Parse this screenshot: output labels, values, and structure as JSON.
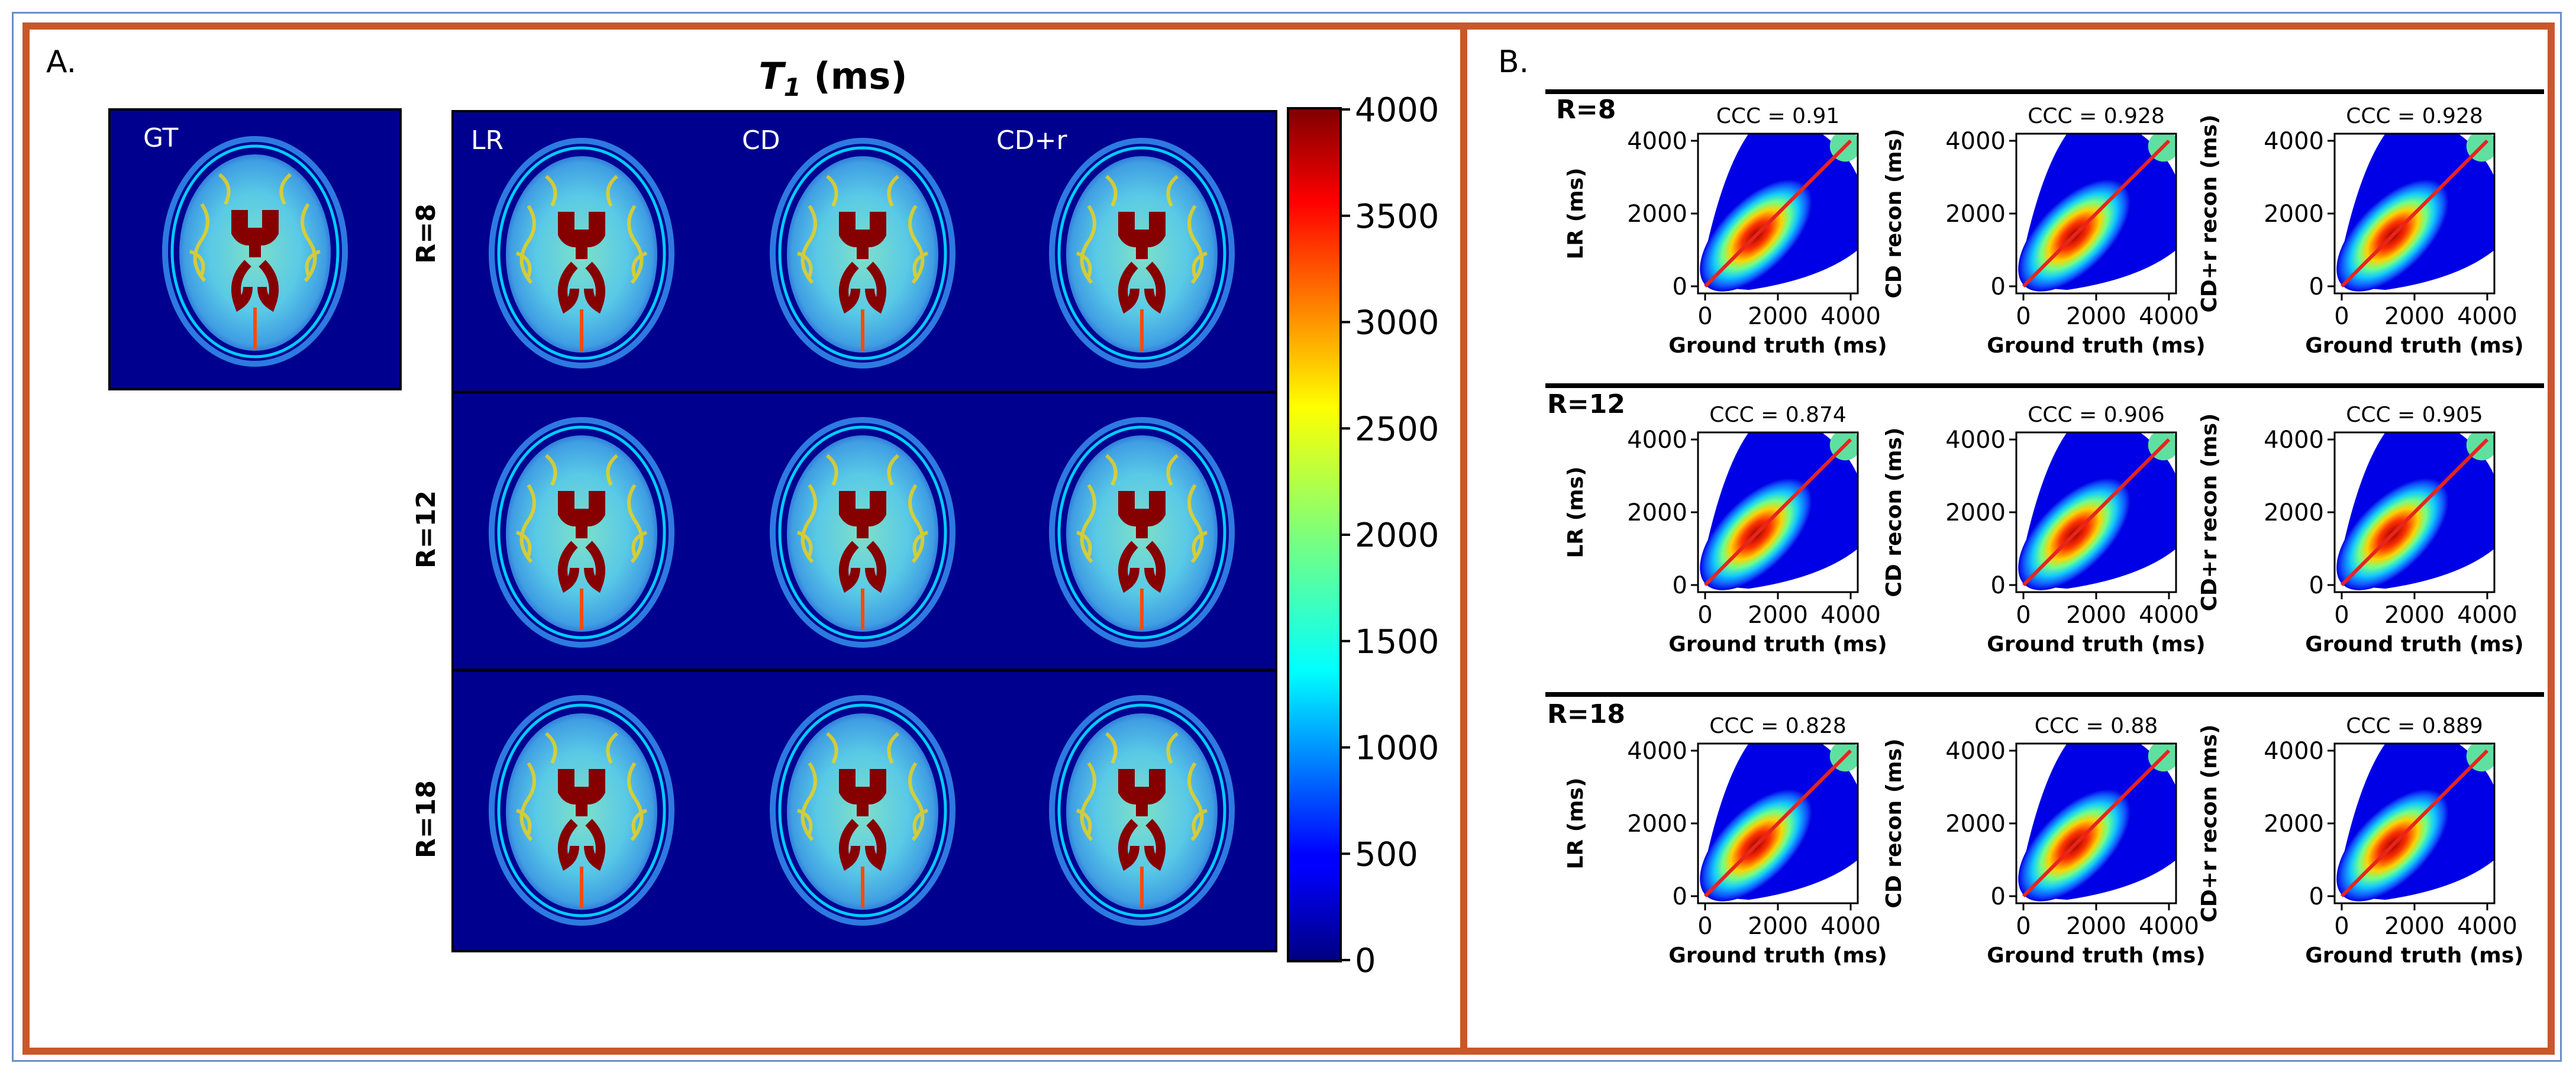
{
  "panel_a": {
    "label": "A.",
    "title_symbol": "T",
    "title_subscript": "1",
    "title_unit": " (ms)",
    "gt_label": "GT",
    "column_labels": [
      "LR",
      "CD",
      "CD+r"
    ],
    "row_labels": [
      "R=8",
      "R=12",
      "R=18"
    ],
    "colorbar_ticks": [
      "4000",
      "3500",
      "3000",
      "2500",
      "2000",
      "1500",
      "1000",
      "500",
      "0"
    ],
    "colors": {
      "background": "#00008f",
      "ventricle": "#800000"
    }
  },
  "panel_b": {
    "label": "B.",
    "rows": [
      {
        "label": "R=8",
        "ccc": [
          "CCC = 0.91",
          "CCC = 0.928",
          "CCC = 0.928"
        ]
      },
      {
        "label": "R=12",
        "ccc": [
          "CCC = 0.874",
          "CCC = 0.906",
          "CCC = 0.905"
        ]
      },
      {
        "label": "R=18",
        "ccc": [
          "CCC = 0.828",
          "CCC = 0.88",
          "CCC = 0.889"
        ]
      }
    ],
    "ylabels": [
      "LR (ms)",
      "CD recon (ms)",
      "CD+r recon (ms)"
    ],
    "xlabel": "Ground truth (ms)",
    "tick_labels": [
      "0",
      "2000",
      "4000"
    ]
  },
  "chart_data": [
    {
      "type": "scatter",
      "title": "CCC = 0.91",
      "xlabel": "Ground truth (ms)",
      "ylabel": "LR (ms)",
      "xlim": [
        0,
        4000
      ],
      "ylim": [
        0,
        4000
      ],
      "x": [
        0,
        4000
      ],
      "y": [
        0,
        4000
      ],
      "series": [
        {
          "name": "identity line",
          "x": [
            0,
            4000
          ],
          "y": [
            0,
            4000
          ]
        }
      ]
    },
    {
      "type": "scatter",
      "title": "CCC = 0.928",
      "ylabel": "CD recon (ms)",
      "xlabel": "Ground truth (ms)",
      "xlim": [
        0,
        4000
      ],
      "ylim": [
        0,
        4000
      ]
    },
    {
      "type": "scatter",
      "title": "CCC = 0.928",
      "ylabel": "CD+r recon (ms)",
      "xlabel": "Ground truth (ms)",
      "xlim": [
        0,
        4000
      ],
      "ylim": [
        0,
        4000
      ]
    },
    {
      "type": "scatter",
      "title": "CCC = 0.874",
      "ylabel": "LR (ms)",
      "xlabel": "Ground truth (ms)",
      "xlim": [
        0,
        4000
      ],
      "ylim": [
        0,
        4000
      ]
    },
    {
      "type": "scatter",
      "title": "CCC = 0.906",
      "ylabel": "CD recon (ms)",
      "xlabel": "Ground truth (ms)",
      "xlim": [
        0,
        4000
      ],
      "ylim": [
        0,
        4000
      ]
    },
    {
      "type": "scatter",
      "title": "CCC = 0.905",
      "ylabel": "CD+r recon (ms)",
      "xlabel": "Ground truth (ms)",
      "xlim": [
        0,
        4000
      ],
      "ylim": [
        0,
        4000
      ]
    },
    {
      "type": "scatter",
      "title": "CCC = 0.828",
      "ylabel": "LR (ms)",
      "xlabel": "Ground truth (ms)",
      "xlim": [
        0,
        4000
      ],
      "ylim": [
        0,
        4000
      ]
    },
    {
      "type": "scatter",
      "title": "CCC = 0.88",
      "ylabel": "CD recon (ms)",
      "xlabel": "Ground truth (ms)",
      "xlim": [
        0,
        4000
      ],
      "ylim": [
        0,
        4000
      ]
    },
    {
      "type": "scatter",
      "title": "CCC = 0.889",
      "ylabel": "CD+r recon (ms)",
      "xlabel": "Ground truth (ms)",
      "xlim": [
        0,
        4000
      ],
      "ylim": [
        0,
        4000
      ]
    }
  ]
}
